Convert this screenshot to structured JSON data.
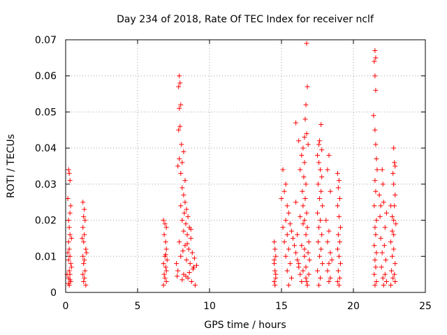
{
  "chart_data": {
    "type": "scatter",
    "title": "Day 234 of 2018, Rate Of TEC Index for receiver nclf",
    "xlabel": "GPS time / hours",
    "ylabel": "ROTI / TECUs",
    "xlim": [
      0,
      25
    ],
    "ylim": [
      0,
      0.07
    ],
    "xticks": [
      0,
      5,
      10,
      15,
      20,
      25
    ],
    "yticks": [
      0,
      0.01,
      0.02,
      0.03,
      0.04,
      0.05,
      0.06,
      0.07
    ],
    "xtick_labels": [
      "0",
      "5",
      "10",
      "15",
      "20",
      "25"
    ],
    "ytick_labels": [
      "0",
      "0.01",
      "0.02",
      "0.03",
      "0.04",
      "0.05",
      "0.06",
      "0.07"
    ],
    "grid": true,
    "marker": "+",
    "color": "#ff0000",
    "series": [
      {
        "name": "ROTI",
        "points": [
          [
            0.2,
            0.034
          ],
          [
            0.25,
            0.033
          ],
          [
            0.3,
            0.031
          ],
          [
            0.15,
            0.026
          ],
          [
            0.35,
            0.024
          ],
          [
            0.3,
            0.022
          ],
          [
            0.2,
            0.02
          ],
          [
            0.25,
            0.018
          ],
          [
            0.3,
            0.016
          ],
          [
            0.2,
            0.014
          ],
          [
            0.25,
            0.012
          ],
          [
            0.3,
            0.01
          ],
          [
            0.2,
            0.009
          ],
          [
            0.35,
            0.008
          ],
          [
            0.25,
            0.006
          ],
          [
            0.3,
            0.005
          ],
          [
            0.2,
            0.004
          ],
          [
            0.35,
            0.003
          ],
          [
            0.25,
            0.002
          ],
          [
            0.4,
            0.015
          ],
          [
            0.15,
            0.011
          ],
          [
            0.4,
            0.007
          ],
          [
            0.1,
            0.005
          ],
          [
            0.3,
            0.0035
          ],
          [
            0.2,
            0.0025
          ],
          [
            1.2,
            0.025
          ],
          [
            1.3,
            0.023
          ],
          [
            1.25,
            0.021
          ],
          [
            1.35,
            0.02
          ],
          [
            1.2,
            0.018
          ],
          [
            1.3,
            0.016
          ],
          [
            1.25,
            0.014
          ],
          [
            1.4,
            0.012
          ],
          [
            1.2,
            0.01
          ],
          [
            1.3,
            0.009
          ],
          [
            1.25,
            0.008
          ],
          [
            1.35,
            0.006
          ],
          [
            1.2,
            0.005
          ],
          [
            1.3,
            0.004
          ],
          [
            1.25,
            0.003
          ],
          [
            1.4,
            0.002
          ],
          [
            1.15,
            0.015
          ],
          [
            1.45,
            0.011
          ],
          [
            6.8,
            0.02
          ],
          [
            6.9,
            0.019
          ],
          [
            7.0,
            0.018
          ],
          [
            6.85,
            0.016
          ],
          [
            6.95,
            0.014
          ],
          [
            7.0,
            0.012
          ],
          [
            6.9,
            0.01
          ],
          [
            6.8,
            0.008
          ],
          [
            6.95,
            0.007
          ],
          [
            7.0,
            0.006
          ],
          [
            6.85,
            0.005
          ],
          [
            6.9,
            0.004
          ],
          [
            7.0,
            0.003
          ],
          [
            6.8,
            0.002
          ],
          [
            6.95,
            0.0105
          ],
          [
            7.05,
            0.009
          ],
          [
            7.9,
            0.06
          ],
          [
            7.95,
            0.058
          ],
          [
            7.85,
            0.057
          ],
          [
            8.0,
            0.052
          ],
          [
            7.9,
            0.051
          ],
          [
            7.95,
            0.046
          ],
          [
            7.85,
            0.045
          ],
          [
            8.05,
            0.041
          ],
          [
            7.9,
            0.037
          ],
          [
            8.1,
            0.036
          ],
          [
            8.2,
            0.039
          ],
          [
            7.8,
            0.035
          ],
          [
            8.0,
            0.033
          ],
          [
            8.3,
            0.031
          ],
          [
            8.1,
            0.029
          ],
          [
            8.2,
            0.027
          ],
          [
            8.3,
            0.025
          ],
          [
            8.0,
            0.024
          ],
          [
            8.4,
            0.023
          ],
          [
            8.25,
            0.022
          ],
          [
            8.5,
            0.021
          ],
          [
            8.1,
            0.02
          ],
          [
            8.35,
            0.019
          ],
          [
            8.6,
            0.018
          ],
          [
            8.2,
            0.017
          ],
          [
            8.45,
            0.016
          ],
          [
            8.7,
            0.015
          ],
          [
            7.9,
            0.014
          ],
          [
            8.3,
            0.013
          ],
          [
            8.55,
            0.012
          ],
          [
            8.8,
            0.011
          ],
          [
            8.0,
            0.01
          ],
          [
            8.4,
            0.009
          ],
          [
            8.65,
            0.008
          ],
          [
            8.9,
            0.007
          ],
          [
            7.8,
            0.006
          ],
          [
            8.2,
            0.005
          ],
          [
            8.5,
            0.004
          ],
          [
            8.75,
            0.003
          ],
          [
            9.0,
            0.002
          ],
          [
            8.1,
            0.0035
          ],
          [
            8.35,
            0.0045
          ],
          [
            8.6,
            0.0055
          ],
          [
            8.85,
            0.0065
          ],
          [
            9.1,
            0.0075
          ],
          [
            7.7,
            0.008
          ],
          [
            7.75,
            0.0045
          ],
          [
            8.95,
            0.0095
          ],
          [
            8.15,
            0.0115
          ],
          [
            8.45,
            0.0135
          ],
          [
            8.7,
            0.0175
          ],
          [
            14.5,
            0.014
          ],
          [
            14.55,
            0.012
          ],
          [
            14.6,
            0.01
          ],
          [
            14.5,
            0.008
          ],
          [
            14.55,
            0.006
          ],
          [
            14.6,
            0.004
          ],
          [
            14.5,
            0.003
          ],
          [
            14.55,
            0.002
          ],
          [
            14.5,
            0.009
          ],
          [
            14.6,
            0.005
          ],
          [
            15.1,
            0.034
          ],
          [
            15.3,
            0.03
          ],
          [
            15.2,
            0.028
          ],
          [
            15.0,
            0.026
          ],
          [
            15.4,
            0.024
          ],
          [
            15.5,
            0.022
          ],
          [
            15.3,
            0.02
          ],
          [
            15.6,
            0.019
          ],
          [
            15.1,
            0.018
          ],
          [
            15.7,
            0.017
          ],
          [
            15.4,
            0.016
          ],
          [
            15.8,
            0.015
          ],
          [
            15.2,
            0.014
          ],
          [
            15.9,
            0.013
          ],
          [
            15.5,
            0.012
          ],
          [
            16.0,
            0.011
          ],
          [
            15.3,
            0.01
          ],
          [
            16.1,
            0.009
          ],
          [
            15.6,
            0.008
          ],
          [
            16.2,
            0.007
          ],
          [
            15.4,
            0.006
          ],
          [
            16.3,
            0.005
          ],
          [
            15.7,
            0.004
          ],
          [
            16.4,
            0.003
          ],
          [
            15.5,
            0.002
          ],
          [
            16.0,
            0.025
          ],
          [
            16.3,
            0.021
          ],
          [
            16.5,
            0.019
          ],
          [
            16.1,
            0.016
          ],
          [
            16.4,
            0.013
          ],
          [
            16.6,
            0.01
          ],
          [
            16.2,
            0.008
          ],
          [
            16.5,
            0.006
          ],
          [
            16.7,
            0.004
          ],
          [
            16.8,
            0.002
          ],
          [
            16.0,
            0.047
          ],
          [
            16.2,
            0.042
          ],
          [
            16.5,
            0.04
          ],
          [
            16.4,
            0.038
          ],
          [
            16.6,
            0.036
          ],
          [
            16.3,
            0.034
          ],
          [
            16.55,
            0.032
          ],
          [
            16.7,
            0.03
          ],
          [
            16.45,
            0.028
          ],
          [
            16.65,
            0.026
          ],
          [
            16.5,
            0.024
          ],
          [
            16.75,
            0.022
          ],
          [
            16.6,
            0.02
          ],
          [
            16.8,
            0.018
          ],
          [
            16.7,
            0.016
          ],
          [
            16.9,
            0.014
          ],
          [
            16.6,
            0.012
          ],
          [
            16.85,
            0.011
          ],
          [
            16.95,
            0.009
          ],
          [
            16.7,
            0.007
          ],
          [
            16.9,
            0.005
          ],
          [
            16.75,
            0.003
          ],
          [
            16.75,
            0.069
          ],
          [
            16.8,
            0.057
          ],
          [
            16.7,
            0.052
          ],
          [
            16.65,
            0.048
          ],
          [
            16.75,
            0.044
          ],
          [
            16.85,
            0.041
          ],
          [
            16.6,
            0.043
          ],
          [
            17.5,
            0.038
          ],
          [
            17.6,
            0.036
          ],
          [
            17.7,
            0.034
          ],
          [
            17.8,
            0.032
          ],
          [
            17.55,
            0.03
          ],
          [
            17.75,
            0.028
          ],
          [
            17.65,
            0.026
          ],
          [
            17.85,
            0.024
          ],
          [
            17.5,
            0.022
          ],
          [
            17.7,
            0.02
          ],
          [
            17.6,
            0.018
          ],
          [
            17.8,
            0.016
          ],
          [
            17.55,
            0.014
          ],
          [
            17.75,
            0.012
          ],
          [
            17.65,
            0.01
          ],
          [
            17.85,
            0.008
          ],
          [
            17.5,
            0.006
          ],
          [
            17.7,
            0.004
          ],
          [
            17.6,
            0.002
          ],
          [
            17.75,
            0.0465
          ],
          [
            17.65,
            0.042
          ],
          [
            17.8,
            0.0395
          ],
          [
            17.6,
            0.041
          ],
          [
            18.3,
            0.038
          ],
          [
            18.2,
            0.034
          ],
          [
            18.4,
            0.028
          ],
          [
            18.1,
            0.02
          ],
          [
            18.3,
            0.017
          ],
          [
            18.2,
            0.014
          ],
          [
            18.4,
            0.011
          ],
          [
            18.3,
            0.008
          ],
          [
            18.2,
            0.006
          ],
          [
            18.4,
            0.004
          ],
          [
            18.3,
            0.003
          ],
          [
            18.5,
            0.009
          ],
          [
            18.9,
            0.033
          ],
          [
            19.0,
            0.031
          ],
          [
            18.95,
            0.029
          ],
          [
            19.05,
            0.026
          ],
          [
            18.9,
            0.024
          ],
          [
            19.0,
            0.021
          ],
          [
            19.1,
            0.018
          ],
          [
            18.95,
            0.016
          ],
          [
            19.05,
            0.014
          ],
          [
            18.9,
            0.012
          ],
          [
            19.0,
            0.01
          ],
          [
            19.1,
            0.008
          ],
          [
            18.95,
            0.006
          ],
          [
            19.05,
            0.004
          ],
          [
            18.9,
            0.003
          ],
          [
            19.0,
            0.002
          ],
          [
            21.5,
            0.067
          ],
          [
            21.55,
            0.065
          ],
          [
            21.45,
            0.064
          ],
          [
            21.5,
            0.06
          ],
          [
            21.55,
            0.056
          ],
          [
            21.4,
            0.049
          ],
          [
            21.5,
            0.045
          ],
          [
            21.55,
            0.041
          ],
          [
            21.6,
            0.037
          ],
          [
            21.65,
            0.034
          ],
          [
            21.5,
            0.031
          ],
          [
            21.55,
            0.028
          ],
          [
            21.45,
            0.024
          ],
          [
            21.6,
            0.02
          ],
          [
            21.5,
            0.018
          ],
          [
            21.55,
            0.016
          ],
          [
            21.45,
            0.013
          ],
          [
            21.6,
            0.011
          ],
          [
            21.5,
            0.009
          ],
          [
            21.55,
            0.007
          ],
          [
            21.45,
            0.005
          ],
          [
            21.6,
            0.003
          ],
          [
            21.5,
            0.002
          ],
          [
            21.8,
            0.027
          ],
          [
            21.9,
            0.024
          ],
          [
            22.0,
            0.034
          ],
          [
            22.05,
            0.03
          ],
          [
            22.1,
            0.025
          ],
          [
            21.85,
            0.021
          ],
          [
            22.2,
            0.018
          ],
          [
            21.9,
            0.015
          ],
          [
            22.15,
            0.013
          ],
          [
            22.0,
            0.011
          ],
          [
            22.25,
            0.009
          ],
          [
            21.95,
            0.007
          ],
          [
            22.2,
            0.005
          ],
          [
            22.05,
            0.004
          ],
          [
            22.3,
            0.003
          ],
          [
            22.1,
            0.002
          ],
          [
            22.3,
            0.022
          ],
          [
            22.6,
            0.024
          ],
          [
            22.7,
            0.021
          ],
          [
            22.8,
            0.04
          ],
          [
            22.85,
            0.036
          ],
          [
            22.9,
            0.035
          ],
          [
            22.75,
            0.033
          ],
          [
            22.8,
            0.03
          ],
          [
            22.9,
            0.027
          ],
          [
            22.85,
            0.024
          ],
          [
            22.8,
            0.02
          ],
          [
            22.7,
            0.017
          ],
          [
            22.6,
            0.014
          ],
          [
            22.8,
            0.012
          ],
          [
            22.7,
            0.01
          ],
          [
            22.9,
            0.008
          ],
          [
            22.65,
            0.006
          ],
          [
            22.85,
            0.005
          ],
          [
            22.75,
            0.004
          ],
          [
            22.9,
            0.003
          ],
          [
            22.6,
            0.002
          ],
          [
            22.8,
            0.016
          ],
          [
            22.95,
            0.019
          ]
        ]
      }
    ]
  }
}
